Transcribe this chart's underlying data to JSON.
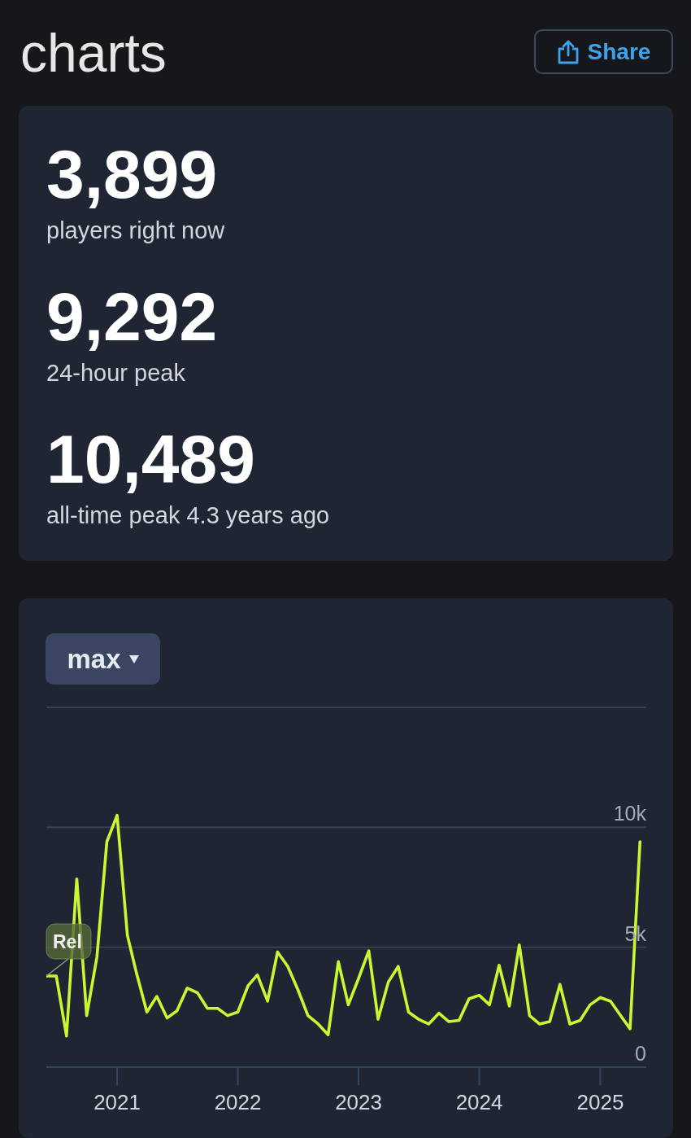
{
  "chart_data": [
    {
      "type": "other",
      "title": "charts",
      "annotations": [
        "Share",
        "3,899",
        "players right now",
        "9,292",
        "24-hour peak",
        "10,489",
        "all-time peak 4.3 years ago"
      ]
    },
    {
      "type": "line",
      "annotations": [
        "max",
        {
          "text": "Rel",
          "x": "2020-06",
          "y": 3800
        }
      ],
      "x": [
        "2020-06",
        "2020-07",
        "2020-08",
        "2020-09",
        "2020-10",
        "2020-11",
        "2020-12",
        "2021-01",
        "2021-02",
        "2021-03",
        "2021-04",
        "2021-05",
        "2021-06",
        "2021-07",
        "2021-08",
        "2021-09",
        "2021-10",
        "2021-11",
        "2021-12",
        "2022-01",
        "2022-02",
        "2022-03",
        "2022-04",
        "2022-05",
        "2022-06",
        "2022-07",
        "2022-08",
        "2022-09",
        "2022-10",
        "2022-11",
        "2022-12",
        "2023-01",
        "2023-02",
        "2023-03",
        "2023-04",
        "2023-05",
        "2023-06",
        "2023-07",
        "2023-08",
        "2023-09",
        "2023-10",
        "2023-11",
        "2023-12",
        "2024-01",
        "2024-02",
        "2024-03",
        "2024-04",
        "2024-05",
        "2024-06",
        "2024-07",
        "2024-08",
        "2024-09",
        "2024-10",
        "2024-11",
        "2024-12",
        "2025-01",
        "2025-02",
        "2025-03",
        "2025-04",
        "2025-05"
      ],
      "values": [
        3800,
        3800,
        1300,
        7850,
        2150,
        4600,
        9400,
        10500,
        5500,
        3900,
        2300,
        2950,
        2050,
        2350,
        3300,
        3100,
        2450,
        2450,
        2150,
        2300,
        3400,
        3850,
        2750,
        4800,
        4200,
        3250,
        2150,
        1800,
        1350,
        4400,
        2600,
        3700,
        4850,
        2000,
        3550,
        4200,
        2300,
        2000,
        1800,
        2250,
        1900,
        1950,
        2850,
        3000,
        2600,
        4250,
        2550,
        5100,
        2150,
        1800,
        1900,
        3450,
        1800,
        1950,
        2600,
        2900,
        2750,
        2200,
        1600,
        9400
      ],
      "color": "#c9f731",
      "xlim": [
        "2020-06",
        "2025-05-20"
      ],
      "xticks": [
        "2021",
        "2022",
        "2023",
        "2024",
        "2025"
      ],
      "ylim": [
        0,
        15000
      ],
      "yticks": [
        0,
        {
          "value": 5000,
          "label": "5k"
        },
        {
          "value": 10000,
          "label": "10k"
        },
        {
          "value": 15000,
          "label": null
        }
      ],
      "grid": "y"
    }
  ]
}
